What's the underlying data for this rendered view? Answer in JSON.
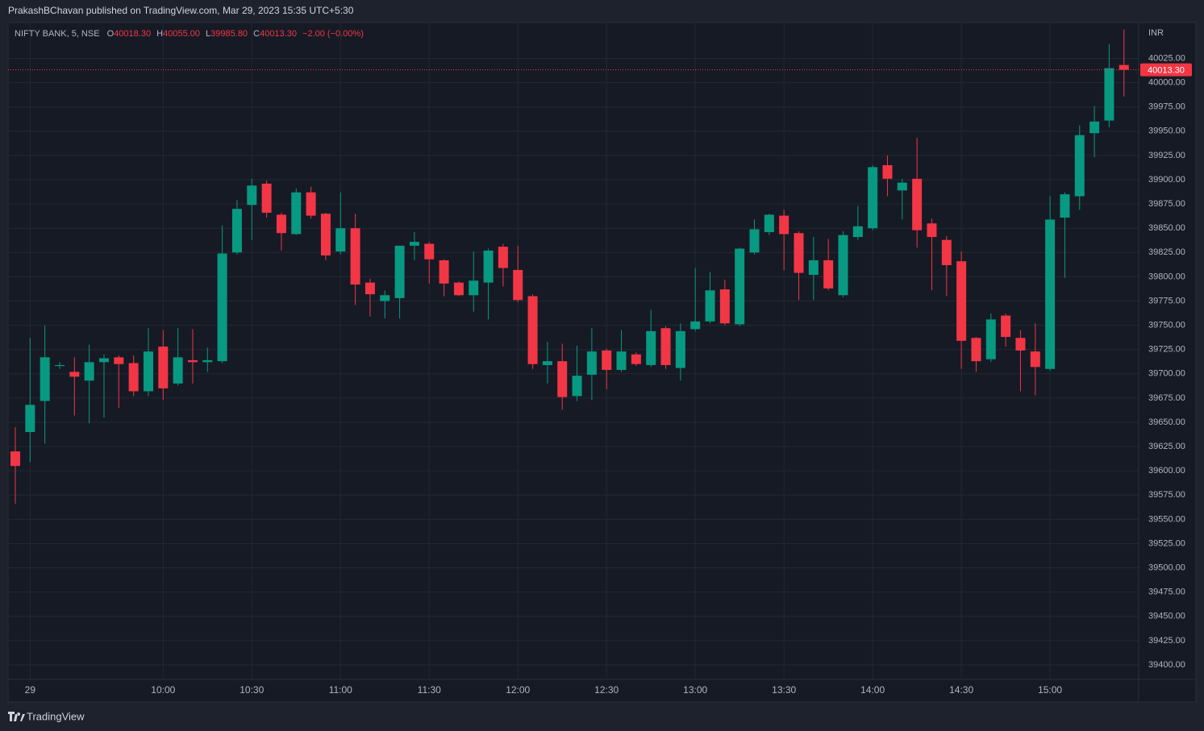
{
  "header": {
    "text": "PrakashBChavan published on TradingView.com, Mar 29, 2023 15:35 UTC+5:30"
  },
  "footer": {
    "brand": "TradingView"
  },
  "chart_data": {
    "type": "candlestick",
    "legend": {
      "symbol": "NIFTY BANK, 5, NSE",
      "o_key": "O",
      "o": "40018.30",
      "h_key": "H",
      "h": "40055.00",
      "l_key": "L",
      "l": "39985.80",
      "c_key": "C",
      "c": "40013.30",
      "change": "−2.00 (−0.00%)"
    },
    "y_axis_label": "INR",
    "up_color": "#089981",
    "down_color": "#f23645",
    "categories": [
      null,
      "29",
      null,
      null,
      null,
      null,
      null,
      null,
      null,
      null,
      "10:00",
      null,
      null,
      null,
      null,
      null,
      "10:30",
      null,
      null,
      null,
      null,
      null,
      "11:00",
      null,
      null,
      null,
      null,
      null,
      "11:30",
      null,
      null,
      null,
      null,
      null,
      "12:00",
      null,
      null,
      null,
      null,
      null,
      "12:30",
      null,
      null,
      null,
      null,
      null,
      "13:00",
      null,
      null,
      null,
      null,
      null,
      "13:30",
      null,
      null,
      null,
      null,
      null,
      "14:00",
      null,
      null,
      null,
      null,
      null,
      "14:30",
      null,
      null,
      null,
      null,
      null,
      "15:00",
      null,
      null,
      null,
      null,
      null
    ],
    "open": [
      39620,
      39640,
      39672,
      39708,
      39702,
      39693,
      39712,
      39717,
      39711,
      39682,
      39728,
      39690,
      39714,
      39712,
      39713,
      39825,
      39874,
      39896,
      39864,
      39844,
      39887,
      39865,
      39826,
      39850,
      39794,
      39775,
      39778,
      39832,
      39834,
      39817,
      39794,
      39781,
      39794,
      39831,
      39807,
      39780,
      39709,
      39713,
      39677,
      39699,
      39724,
      39704,
      39720,
      39709,
      39747,
      39706,
      39746,
      39754,
      39787,
      39751,
      39825,
      39846,
      39863,
      39845,
      39802,
      39817,
      39781,
      39841,
      39850,
      39915,
      39889,
      39901,
      39855,
      39838,
      39816,
      39737,
      39715,
      39760,
      39737,
      39723,
      39705,
      39861,
      39883,
      39948,
      39961,
      40018.3
    ],
    "high": [
      39645,
      39737,
      39750,
      39712,
      39717,
      39730,
      39720,
      39719,
      39719,
      39747,
      39745,
      39747,
      39746,
      39727,
      39853,
      39879,
      39901,
      39899,
      39866,
      39891,
      39893,
      39866,
      39887,
      39865,
      39798,
      39786,
      39832,
      39846,
      39836,
      39818,
      39795,
      39826,
      39829,
      39834,
      39832,
      39782,
      39733,
      39731,
      39729,
      39747,
      39726,
      39745,
      39722,
      39766,
      39749,
      39752,
      39809,
      39805,
      39797,
      39830,
      39859,
      39865,
      39869,
      39847,
      39841,
      39839,
      39847,
      39873,
      39915,
      39925,
      39901,
      39943,
      39860,
      39842,
      39826,
      39738,
      39762,
      39762,
      39745,
      39752,
      39883,
      39887,
      39956,
      39976,
      40040,
      40055
    ],
    "low": [
      39566,
      39609,
      39628,
      39705,
      39657,
      39649,
      39655,
      39665,
      39677,
      39677,
      39673,
      39688,
      39690,
      39702,
      39711,
      39823,
      39838,
      39861,
      39827,
      39843,
      39860,
      39817,
      39823,
      39771,
      39759,
      39757,
      39757,
      39817,
      39793,
      39780,
      39780,
      39764,
      39756,
      39790,
      39774,
      39705,
      39690,
      39663,
      39672,
      39673,
      39684,
      39702,
      39708,
      39707,
      39705,
      39693,
      39744,
      39752,
      39750,
      39749,
      39823,
      39843,
      39807,
      39776,
      39776,
      39786,
      39779,
      39838,
      39848,
      39883,
      39859,
      39830,
      39786,
      39780,
      39705,
      39702,
      39712,
      39728,
      39682,
      39678,
      39703,
      39799,
      39869,
      39923,
      39954,
      39985.8
    ],
    "close": [
      39605,
      39668,
      39717,
      39709,
      39697,
      39712,
      39716,
      39710,
      39682,
      39723,
      39685,
      39717,
      39712,
      39714,
      39824,
      39870,
      39894,
      39866,
      39845,
      39887,
      39863,
      39822,
      39850,
      39792,
      39782,
      39781,
      39832,
      39836,
      39818,
      39793,
      39781,
      39796,
      39827,
      39809,
      39776,
      39710,
      39713,
      39676,
      39698,
      39723,
      39704,
      39723,
      39710,
      39744,
      39709,
      39744,
      39754,
      39786,
      39752,
      39829,
      39849,
      39864,
      39844,
      39804,
      39817,
      39788,
      39843,
      39852,
      39913,
      39901,
      39897,
      39848,
      39841,
      39812,
      39734,
      39713,
      39756,
      39738,
      39724,
      39707,
      39859,
      39885,
      39946,
      39960,
      40015,
      40013.3
    ],
    "last_price": {
      "value": 40013.3,
      "label": "40013.30"
    },
    "ylim": [
      39385,
      40062
    ],
    "yticks": [
      {
        "value": 39400,
        "label": "39400.00"
      },
      {
        "value": 39425,
        "label": "39425.00"
      },
      {
        "value": 39450,
        "label": "39450.00"
      },
      {
        "value": 39475,
        "label": "39475.00"
      },
      {
        "value": 39500,
        "label": "39500.00"
      },
      {
        "value": 39525,
        "label": "39525.00"
      },
      {
        "value": 39550,
        "label": "39550.00"
      },
      {
        "value": 39575,
        "label": "39575.00"
      },
      {
        "value": 39600,
        "label": "39600.00"
      },
      {
        "value": 39625,
        "label": "39625.00"
      },
      {
        "value": 39650,
        "label": "39650.00"
      },
      {
        "value": 39675,
        "label": "39675.00"
      },
      {
        "value": 39700,
        "label": "39700.00"
      },
      {
        "value": 39725,
        "label": "39725.00"
      },
      {
        "value": 39750,
        "label": "39750.00"
      },
      {
        "value": 39775,
        "label": "39775.00"
      },
      {
        "value": 39800,
        "label": "39800.00"
      },
      {
        "value": 39825,
        "label": "39825.00"
      },
      {
        "value": 39850,
        "label": "39850.00"
      },
      {
        "value": 39875,
        "label": "39875.00"
      },
      {
        "value": 39900,
        "label": "39900.00"
      },
      {
        "value": 39925,
        "label": "39925.00"
      },
      {
        "value": 39950,
        "label": "39950.00"
      },
      {
        "value": 39975,
        "label": "39975.00"
      },
      {
        "value": 40000,
        "label": "40000.00"
      },
      {
        "value": 40025,
        "label": "40025.00"
      }
    ],
    "grid": true
  }
}
